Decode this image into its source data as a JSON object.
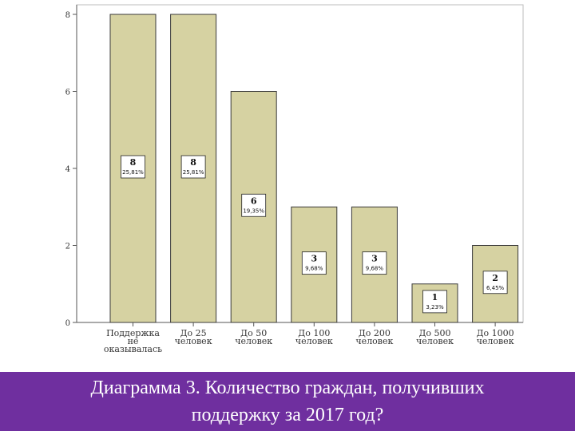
{
  "chart_data": {
    "type": "bar",
    "title": "",
    "xlabel": "",
    "ylabel": "",
    "ylim": [
      0,
      8
    ],
    "yticks": [
      "0",
      "2",
      "4",
      "6",
      "8"
    ],
    "grid": false,
    "categories": [
      [
        "Поддержка",
        "не",
        "оказывалась"
      ],
      [
        "До 25",
        "человек"
      ],
      [
        "До 50",
        "человек"
      ],
      [
        "До 100",
        "человек"
      ],
      [
        "До 200",
        "человек"
      ],
      [
        "До 500",
        "человек"
      ],
      [
        "До 1000",
        "человек"
      ]
    ],
    "values": [
      8,
      8,
      6,
      3,
      3,
      1,
      2
    ],
    "value_labels": [
      "8",
      "8",
      "6",
      "3",
      "3",
      "1",
      "2"
    ],
    "percent_labels": [
      "25,81%",
      "25,81%",
      "19,35%",
      "9,68%",
      "9,68%",
      "3,23%",
      "6,45%"
    ],
    "colors": {
      "bar_fill": "#d6d2a2",
      "bar_stroke": "#3a3a3a",
      "axis": "#555555",
      "text": "#333333"
    }
  },
  "caption": {
    "line1": "Диаграмма 3. Количество граждан, получивших",
    "line2": "поддержку за 2017 год?"
  },
  "colors": {
    "caption_band": "#6f2f9f",
    "caption_text": "#ffffff"
  }
}
